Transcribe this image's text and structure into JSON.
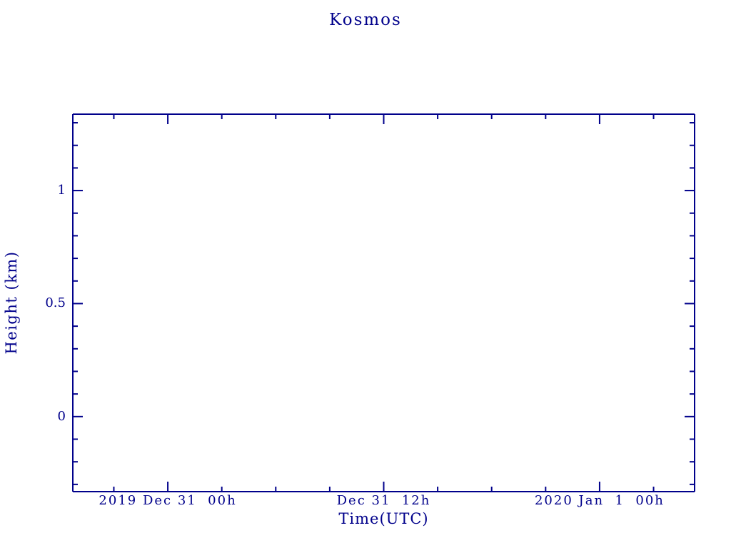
{
  "colors": {
    "plot": "#00008b",
    "background": "#ffffff"
  },
  "chart_data": {
    "type": "line",
    "title": "Kosmos",
    "xlabel": "Time(UTC)",
    "ylabel": "Height (km)",
    "series": [],
    "grid": false,
    "legend": false,
    "plot_area_empty": true,
    "x_axis": {
      "units": "hours relative to first major tick",
      "range": [
        -5.28,
        29.28
      ],
      "minor_tick_interval": 3,
      "major_ticks": [
        {
          "value": 0,
          "label": "2019 Dec 31  00h"
        },
        {
          "value": 12,
          "label": "Dec 31  12h"
        },
        {
          "value": 24,
          "label": "2020 Jan  1  00h"
        }
      ]
    },
    "y_axis": {
      "range": [
        -0.332,
        1.338
      ],
      "minor_tick_interval": 0.1,
      "major_ticks": [
        {
          "value": 0,
          "label": "0"
        },
        {
          "value": 0.5,
          "label": "0.5"
        },
        {
          "value": 1,
          "label": "1"
        }
      ]
    }
  }
}
